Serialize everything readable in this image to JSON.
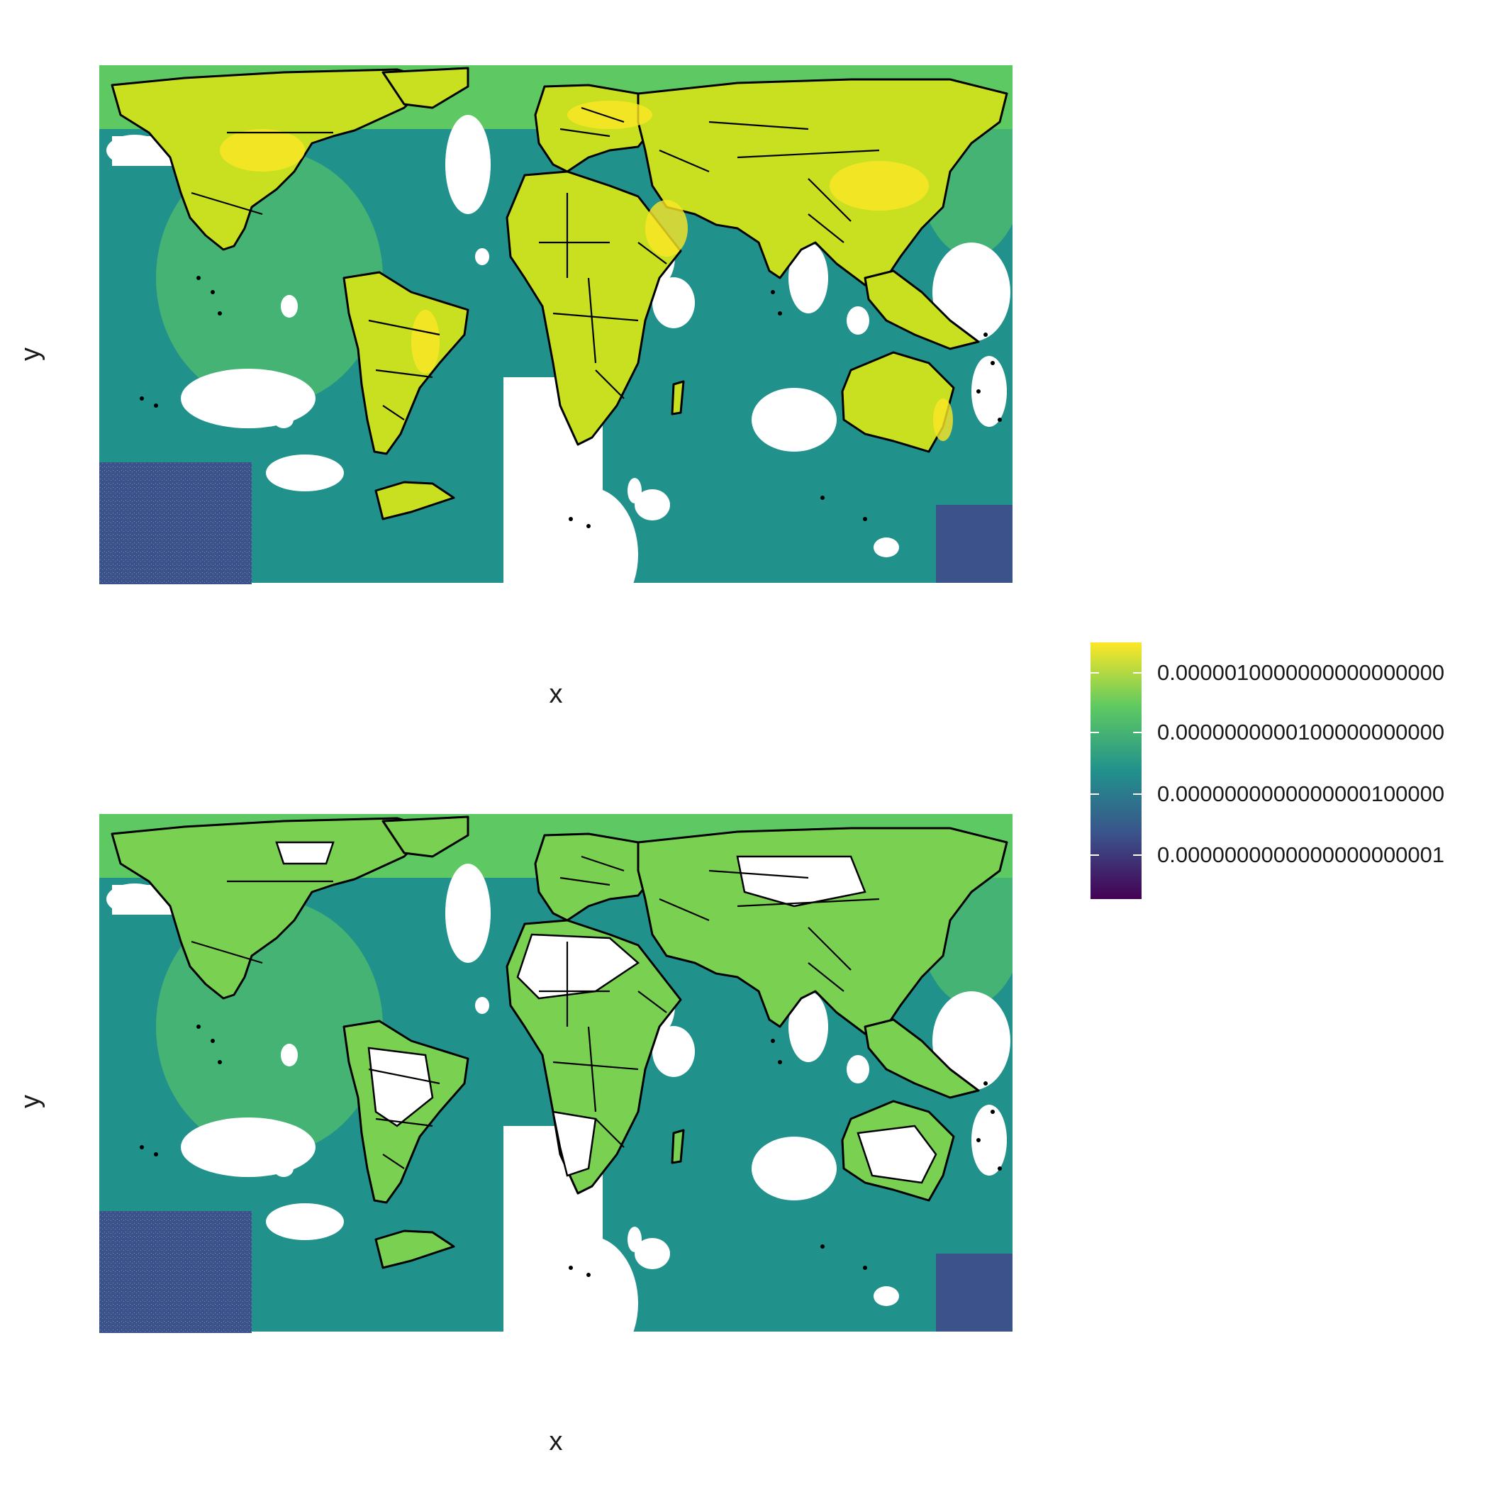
{
  "panels": [
    {
      "id": "top",
      "xlabel": "x",
      "ylabel": "y",
      "land_level": "high",
      "land_color": "#c8e020"
    },
    {
      "id": "bottom",
      "xlabel": "x",
      "ylabel": "y",
      "land_level": "medium",
      "land_color": "#7ad151"
    }
  ],
  "legend": {
    "palette": "viridis",
    "colors": [
      "#440154",
      "#3b528b",
      "#21918c",
      "#5ec962",
      "#fde725"
    ],
    "labels": [
      "0.0000010000000000000000",
      "0.0000000000100000000000",
      "0.0000000000000000100000",
      "0.0000000000000000000001"
    ],
    "label_levels": [
      0.88,
      0.65,
      0.41,
      0.17
    ]
  },
  "ocean_colors": {
    "base": "#21918c",
    "coastal": "#5ec962",
    "deep": "#3b528b"
  },
  "outline_color": "#000000"
}
